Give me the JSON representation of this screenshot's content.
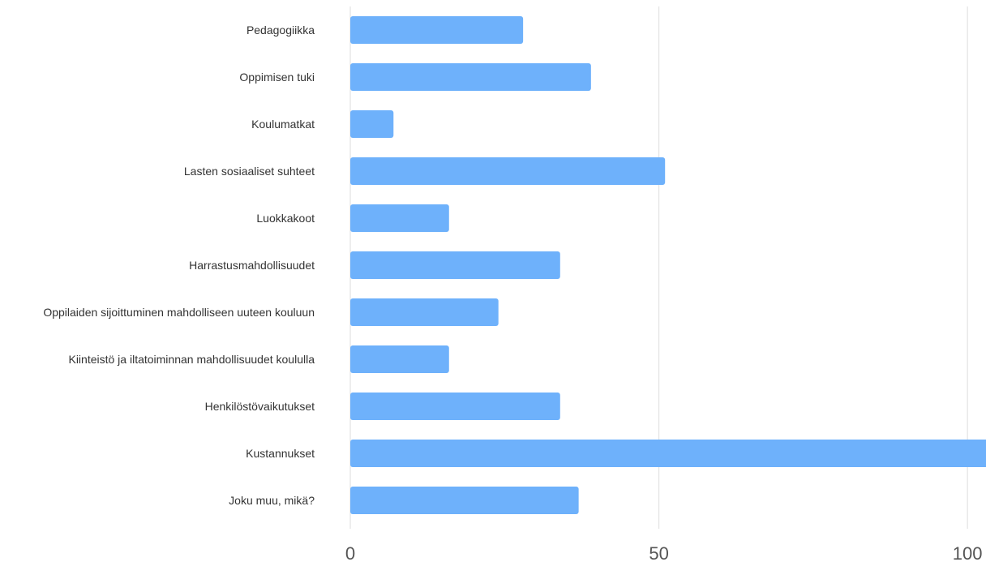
{
  "chart_data": {
    "type": "bar",
    "orientation": "horizontal",
    "categories": [
      "Pedagogiikka",
      "Oppimisen tuki",
      "Koulumatkat",
      "Lasten sosiaaliset suhteet",
      "Luokkakoot",
      "Harrastusmahdollisuudet",
      "Oppilaiden sijoittuminen mahdolliseen uuteen kouluun",
      "Kiinteistö ja iltatoiminnan mahdollisuudet koululla",
      "Henkilöstövaikutukset",
      "Kustannukset",
      "Joku muu, mikä?"
    ],
    "values": [
      28,
      39,
      7,
      51,
      16,
      34,
      24,
      16,
      34,
      104,
      37
    ],
    "xlim": [
      0,
      103
    ],
    "xticks": [
      0,
      50,
      100
    ],
    "grid": true,
    "colors": {
      "bar": "#6eb1fb",
      "grid": "#e3e3e3",
      "label": "#333333",
      "tick": "#555555"
    }
  }
}
